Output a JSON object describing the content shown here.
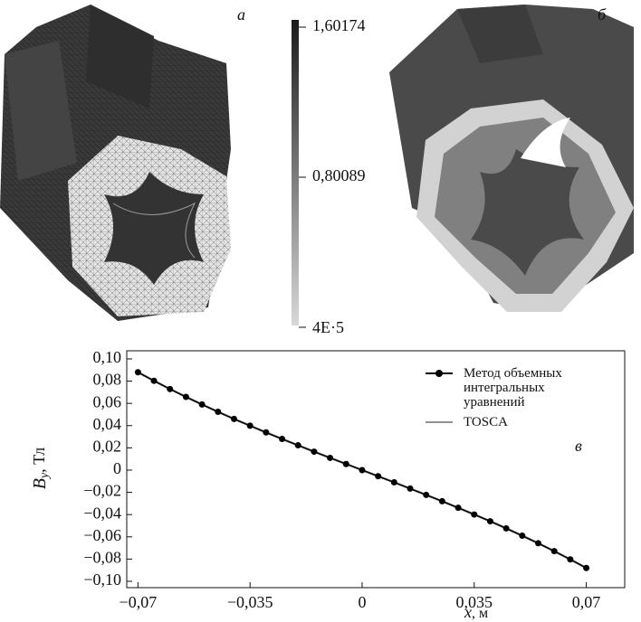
{
  "panel_a": {
    "label": "а"
  },
  "panel_b": {
    "label": "б"
  },
  "colorbar": {
    "max_label": "1,60174",
    "mid_label": "0,80089",
    "min_label": "4E·5"
  },
  "chart_data": {
    "type": "line",
    "panel_label": "в",
    "xlabel": {
      "symbol": "x",
      "unit": ", м"
    },
    "ylabel": {
      "symbol": "B",
      "subscript": "y",
      "unit": ", Тл"
    },
    "x": [
      -0.07,
      -0.065,
      -0.06,
      -0.055,
      -0.05,
      -0.045,
      -0.04,
      -0.035,
      -0.03,
      -0.025,
      -0.02,
      -0.015,
      -0.01,
      -0.005,
      0,
      0.005,
      0.01,
      0.015,
      0.02,
      0.025,
      0.03,
      0.035,
      0.04,
      0.045,
      0.05,
      0.055,
      0.06,
      0.065,
      0.07
    ],
    "series": [
      {
        "name": "Метод объемных интегральных уравнений",
        "color": "#000000",
        "markers": true,
        "values": [
          0.088,
          0.0803,
          0.0729,
          0.0658,
          0.059,
          0.0524,
          0.046,
          0.0399,
          0.0339,
          0.028,
          0.0223,
          0.0166,
          0.011,
          0.0055,
          0,
          -0.0055,
          -0.011,
          -0.0166,
          -0.0223,
          -0.028,
          -0.0339,
          -0.0399,
          -0.046,
          -0.0524,
          -0.059,
          -0.0658,
          -0.0729,
          -0.0803,
          -0.088
        ]
      },
      {
        "name": "TOSCA",
        "color": "#909090",
        "markers": false,
        "values": [
          0.088,
          0.0803,
          0.0729,
          0.0658,
          0.059,
          0.0524,
          0.046,
          0.0399,
          0.0339,
          0.028,
          0.0223,
          0.0166,
          0.011,
          0.0055,
          0,
          -0.0055,
          -0.011,
          -0.0166,
          -0.0223,
          -0.028,
          -0.0339,
          -0.0399,
          -0.046,
          -0.0524,
          -0.059,
          -0.0658,
          -0.0729,
          -0.0803,
          -0.088
        ]
      }
    ],
    "xlim": [
      -0.0735,
      0.082
    ],
    "ylim": [
      -0.1057,
      0.1073
    ],
    "xticks": [
      {
        "value": -0.07,
        "label": "−0,07"
      },
      {
        "value": -0.035,
        "label": "−0,035"
      },
      0,
      {
        "value": 0.035,
        "label": "0,035"
      },
      {
        "value": 0.07,
        "label": "0,07"
      }
    ],
    "yticks": [
      {
        "value": 0.1,
        "label": "0,10"
      },
      {
        "value": 0.08,
        "label": "0,08"
      },
      {
        "value": 0.06,
        "label": "0,06"
      },
      {
        "value": 0.04,
        "label": "0,04"
      },
      {
        "value": 0.02,
        "label": "0,02"
      },
      0,
      {
        "value": -0.02,
        "label": "−0,02"
      },
      {
        "value": -0.04,
        "label": "−0,04"
      },
      {
        "value": -0.06,
        "label": "−0,06"
      },
      {
        "value": -0.08,
        "label": "−0,08"
      },
      {
        "value": -0.1,
        "label": "−0,10"
      }
    ]
  }
}
